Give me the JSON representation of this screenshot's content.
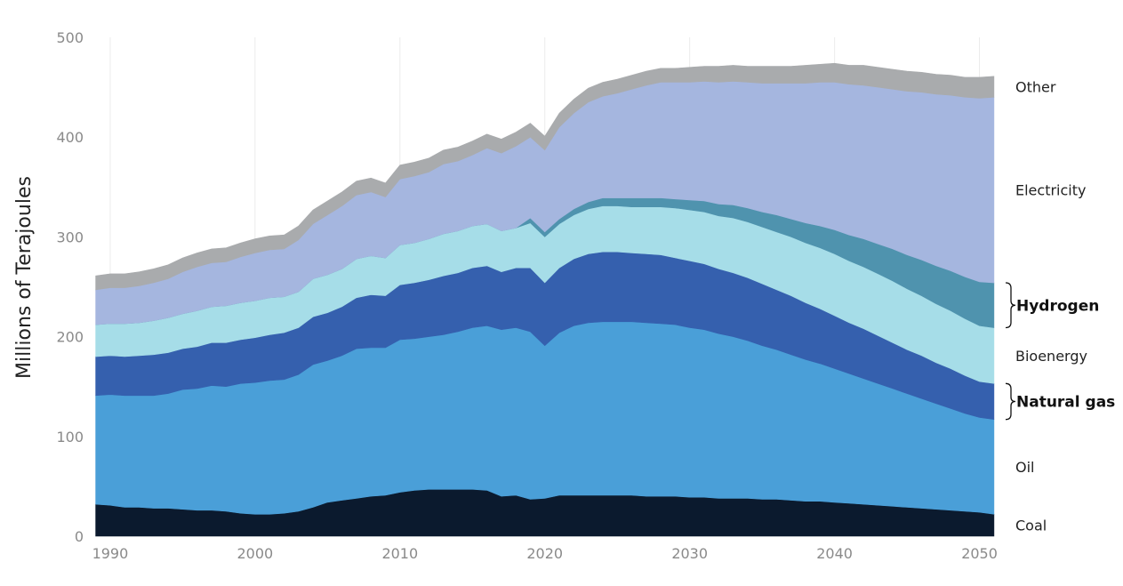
{
  "chart_data": {
    "type": "area",
    "stacked": true,
    "title": "",
    "xlabel": "",
    "ylabel": "Millions of Terajoules",
    "xlim": [
      1988.9,
      2051.5
    ],
    "ylim": [
      0,
      500
    ],
    "grid": "vertical",
    "x_ticks": [
      "1990",
      "2000",
      "2010",
      "2020",
      "2030",
      "2040",
      "2050"
    ],
    "y_ticks": [
      "0",
      "100",
      "200",
      "300",
      "400",
      "500"
    ],
    "x": [
      1989,
      1990,
      1991,
      1992,
      1993,
      1994,
      1995,
      1996,
      1997,
      1998,
      1999,
      2000,
      2001,
      2002,
      2003,
      2004,
      2005,
      2006,
      2007,
      2008,
      2009,
      2010,
      2011,
      2012,
      2013,
      2014,
      2015,
      2016,
      2017,
      2018,
      2019,
      2020,
      2021,
      2022,
      2023,
      2024,
      2025,
      2026,
      2027,
      2028,
      2029,
      2030,
      2031,
      2032,
      2033,
      2034,
      2035,
      2036,
      2037,
      2038,
      2039,
      2040,
      2041,
      2042,
      2043,
      2044,
      2045,
      2046,
      2047,
      2048,
      2049,
      2050,
      2051
    ],
    "series": [
      {
        "name": "Coal",
        "color": "#0b1a2e",
        "values": [
          32,
          31,
          29,
          29,
          28,
          28,
          27,
          26,
          26,
          25,
          23,
          22,
          22,
          23,
          25,
          29,
          34,
          36,
          38,
          40,
          41,
          44,
          46,
          47,
          47,
          47,
          47,
          46,
          40,
          41,
          37,
          38,
          41,
          41,
          41,
          41,
          41,
          41,
          40,
          40,
          40,
          39,
          39,
          38,
          38,
          38,
          37,
          37,
          36,
          35,
          35,
          34,
          33,
          32,
          31,
          30,
          29,
          28,
          27,
          26,
          25,
          24,
          22
        ]
      },
      {
        "name": "Oil",
        "color": "#4a9fd8",
        "values": [
          109,
          111,
          112,
          112,
          113,
          115,
          120,
          122,
          125,
          125,
          130,
          132,
          134,
          134,
          137,
          143,
          142,
          145,
          150,
          149,
          148,
          153,
          152,
          153,
          155,
          158,
          162,
          165,
          167,
          168,
          168,
          153,
          163,
          170,
          173,
          174,
          174,
          174,
          174,
          173,
          172,
          170,
          168,
          165,
          162,
          158,
          154,
          150,
          146,
          142,
          138,
          134,
          130,
          126,
          122,
          118,
          114,
          110,
          106,
          102,
          98,
          95,
          95
        ]
      },
      {
        "name": "Natural gas",
        "color": "#3560ae",
        "values": [
          39,
          39,
          39,
          40,
          41,
          41,
          41,
          42,
          43,
          44,
          44,
          45,
          46,
          47,
          47,
          48,
          48,
          49,
          51,
          53,
          52,
          55,
          56,
          57,
          59,
          59,
          60,
          60,
          58,
          60,
          64,
          63,
          65,
          67,
          69,
          70,
          70,
          69,
          69,
          69,
          67,
          67,
          66,
          65,
          64,
          63,
          62,
          60,
          59,
          57,
          55,
          53,
          51,
          50,
          48,
          46,
          44,
          43,
          41,
          40,
          38,
          36,
          36
        ]
      },
      {
        "name": "Bioenergy",
        "color": "#a6dde8",
        "values": [
          32,
          32,
          33,
          33,
          34,
          35,
          35,
          36,
          36,
          37,
          37,
          37,
          37,
          36,
          36,
          38,
          38,
          38,
          39,
          39,
          38,
          40,
          40,
          41,
          42,
          42,
          42,
          42,
          41,
          40,
          45,
          46,
          44,
          44,
          45,
          46,
          46,
          46,
          47,
          48,
          50,
          51,
          52,
          53,
          55,
          56,
          57,
          58,
          59,
          60,
          61,
          62,
          62,
          62,
          62,
          62,
          61,
          60,
          59,
          58,
          57,
          56,
          56
        ]
      },
      {
        "name": "Hydrogen",
        "color": "#4f93ae",
        "values": [
          0,
          0,
          0,
          0,
          0,
          0,
          0,
          0,
          0,
          0,
          0,
          0,
          0,
          0,
          0,
          0,
          0,
          0,
          0,
          0,
          0,
          0,
          0,
          0,
          0,
          0,
          0,
          0,
          0,
          0,
          5,
          5,
          5,
          6,
          7,
          8,
          8,
          9,
          9,
          9,
          9,
          10,
          11,
          12,
          13,
          14,
          15,
          17,
          18,
          20,
          22,
          24,
          26,
          28,
          30,
          32,
          34,
          36,
          38,
          40,
          42,
          44,
          45
        ]
      },
      {
        "name": "Electricity",
        "color": "#a5b6df",
        "values": [
          35,
          36,
          36,
          37,
          38,
          39,
          42,
          44,
          44,
          44,
          46,
          48,
          48,
          48,
          52,
          55,
          60,
          63,
          64,
          64,
          61,
          66,
          67,
          67,
          70,
          70,
          71,
          76,
          78,
          82,
          81,
          82,
          92,
          96,
          100,
          102,
          105,
          109,
          113,
          116,
          117,
          118,
          120,
          122,
          124,
          126,
          129,
          132,
          136,
          140,
          144,
          148,
          151,
          154,
          157,
          160,
          164,
          168,
          172,
          176,
          180,
          184,
          186
        ]
      },
      {
        "name": "Other",
        "color": "#a9abad",
        "values": [
          14,
          14,
          14,
          14,
          14,
          14,
          14,
          14,
          14,
          14,
          14,
          14,
          14,
          14,
          14,
          14,
          14,
          14,
          14,
          14,
          14,
          14,
          14,
          14,
          14,
          14,
          14,
          14,
          14,
          14,
          14,
          14,
          14,
          14,
          14,
          14,
          14,
          14,
          14,
          14,
          14,
          15,
          15,
          16,
          16,
          16,
          17,
          17,
          17,
          18,
          18,
          19,
          19,
          20,
          20,
          20,
          20,
          20,
          20,
          20,
          20,
          21,
          21
        ]
      }
    ],
    "legend": [
      {
        "label": "Other",
        "emphasis": false
      },
      {
        "label": "Electricity",
        "emphasis": false
      },
      {
        "label": "Hydrogen",
        "emphasis": true
      },
      {
        "label": "Bioenergy",
        "emphasis": false
      },
      {
        "label": "Natural gas",
        "emphasis": true
      },
      {
        "label": "Oil",
        "emphasis": false
      },
      {
        "label": "Coal",
        "emphasis": false
      }
    ]
  }
}
